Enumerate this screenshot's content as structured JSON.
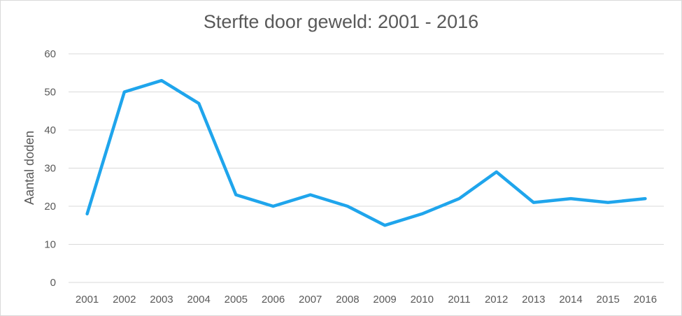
{
  "chart_data": {
    "type": "line",
    "title": "Sterfte door geweld: 2001 - 2016",
    "xlabel": "",
    "ylabel": "Aantal doden",
    "categories": [
      "2001",
      "2002",
      "2003",
      "2004",
      "2005",
      "2006",
      "2007",
      "2008",
      "2009",
      "2010",
      "2011",
      "2012",
      "2013",
      "2014",
      "2015",
      "2016"
    ],
    "series": [
      {
        "values": [
          18,
          50,
          53,
          47,
          23,
          20,
          23,
          20,
          15,
          18,
          22,
          29,
          21,
          22,
          21,
          22
        ]
      }
    ],
    "ylim": [
      0,
      60
    ],
    "yticks": [
      "0",
      "10",
      "20",
      "30",
      "40",
      "50",
      "60"
    ],
    "grid": true,
    "legend": "none",
    "line_color": "#1fa5ec",
    "grid_color": "#d9d9d9",
    "text_color": "#595959"
  }
}
